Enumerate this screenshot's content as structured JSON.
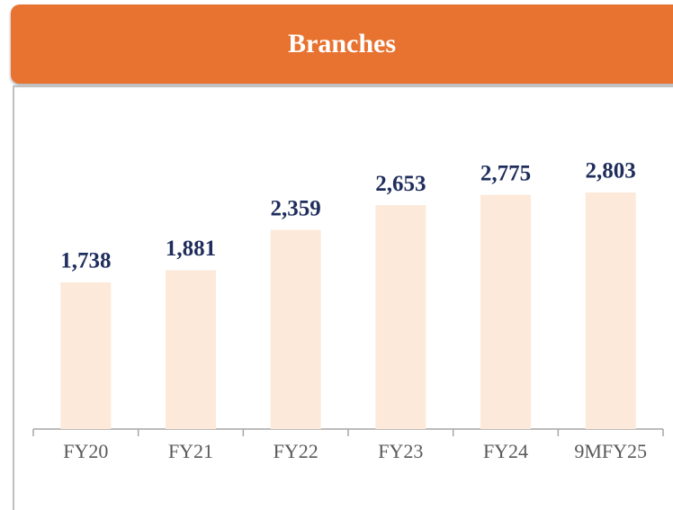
{
  "chart_data": {
    "type": "bar",
    "title": "Branches",
    "categories": [
      "FY20",
      "FY21",
      "FY22",
      "FY23",
      "FY24",
      "9MFY25"
    ],
    "values": [
      1738,
      1881,
      2359,
      2653,
      2775,
      2803
    ],
    "value_labels": [
      "1,738",
      "1,881",
      "2,359",
      "2,653",
      "2,775",
      "2,803"
    ],
    "color": "#fde9d9",
    "header_color": "#e8722f",
    "label_color": "#1f2d5c"
  }
}
